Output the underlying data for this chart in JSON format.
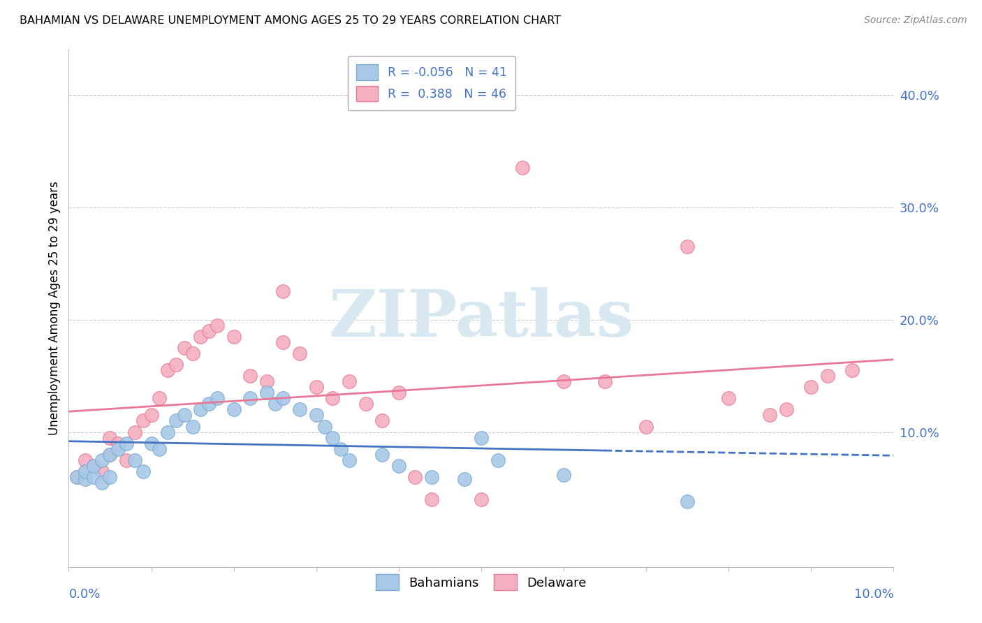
{
  "title": "BAHAMIAN VS DELAWARE UNEMPLOYMENT AMONG AGES 25 TO 29 YEARS CORRELATION CHART",
  "source": "Source: ZipAtlas.com",
  "ylabel": "Unemployment Among Ages 25 to 29 years",
  "xlim": [
    0.0,
    0.1
  ],
  "ylim": [
    -0.02,
    0.44
  ],
  "y_ticks": [
    0.0,
    0.1,
    0.2,
    0.3,
    0.4
  ],
  "y_tick_labels": [
    "",
    "10.0%",
    "20.0%",
    "30.0%",
    "40.0%"
  ],
  "x_tick_positions": [
    0.0,
    0.01,
    0.02,
    0.03,
    0.04,
    0.05,
    0.06,
    0.07,
    0.08,
    0.09,
    0.1
  ],
  "bahamians_color": "#a8c8e8",
  "bahamians_edge_color": "#7aaacf",
  "delaware_color": "#f4b0c0",
  "delaware_edge_color": "#e87898",
  "bahamians_line_color": "#4472c4",
  "delaware_line_color": "#e87898",
  "R_bahamians": -0.056,
  "N_bahamians": 41,
  "R_delaware": 0.388,
  "N_delaware": 46,
  "trend_dash_start": 0.065,
  "bahamians_x": [
    0.001,
    0.002,
    0.002,
    0.003,
    0.003,
    0.004,
    0.004,
    0.005,
    0.005,
    0.006,
    0.007,
    0.008,
    0.009,
    0.01,
    0.011,
    0.012,
    0.013,
    0.014,
    0.015,
    0.016,
    0.017,
    0.018,
    0.02,
    0.022,
    0.024,
    0.025,
    0.026,
    0.028,
    0.03,
    0.031,
    0.032,
    0.033,
    0.034,
    0.038,
    0.04,
    0.044,
    0.048,
    0.05,
    0.052,
    0.06,
    0.075
  ],
  "bahamians_y": [
    0.06,
    0.058,
    0.065,
    0.06,
    0.07,
    0.055,
    0.075,
    0.06,
    0.08,
    0.085,
    0.09,
    0.075,
    0.065,
    0.09,
    0.085,
    0.1,
    0.11,
    0.115,
    0.105,
    0.12,
    0.125,
    0.13,
    0.12,
    0.13,
    0.135,
    0.125,
    0.13,
    0.12,
    0.115,
    0.105,
    0.095,
    0.085,
    0.075,
    0.08,
    0.07,
    0.06,
    0.058,
    0.095,
    0.075,
    0.062,
    0.038
  ],
  "delaware_x": [
    0.001,
    0.002,
    0.002,
    0.003,
    0.004,
    0.005,
    0.005,
    0.006,
    0.007,
    0.008,
    0.009,
    0.01,
    0.011,
    0.012,
    0.013,
    0.014,
    0.015,
    0.016,
    0.017,
    0.018,
    0.02,
    0.022,
    0.024,
    0.026,
    0.026,
    0.028,
    0.03,
    0.032,
    0.034,
    0.036,
    0.038,
    0.04,
    0.042,
    0.044,
    0.05,
    0.055,
    0.06,
    0.065,
    0.07,
    0.075,
    0.08,
    0.085,
    0.087,
    0.09,
    0.092,
    0.095
  ],
  "delaware_y": [
    0.06,
    0.065,
    0.075,
    0.07,
    0.065,
    0.08,
    0.095,
    0.09,
    0.075,
    0.1,
    0.11,
    0.115,
    0.13,
    0.155,
    0.16,
    0.175,
    0.17,
    0.185,
    0.19,
    0.195,
    0.185,
    0.15,
    0.145,
    0.225,
    0.18,
    0.17,
    0.14,
    0.13,
    0.145,
    0.125,
    0.11,
    0.135,
    0.06,
    0.04,
    0.04,
    0.335,
    0.145,
    0.145,
    0.105,
    0.265,
    0.13,
    0.115,
    0.12,
    0.14,
    0.15,
    0.155
  ],
  "watermark_text": "ZIPatlas",
  "watermark_color": "#d8e8f0",
  "background_color": "#ffffff",
  "grid_color": "#cccccc",
  "legend_R_color": "#4472c4",
  "legend_N_color": "#2e7d32",
  "bottom_legend_labels": [
    "Bahamians",
    "Delaware"
  ]
}
